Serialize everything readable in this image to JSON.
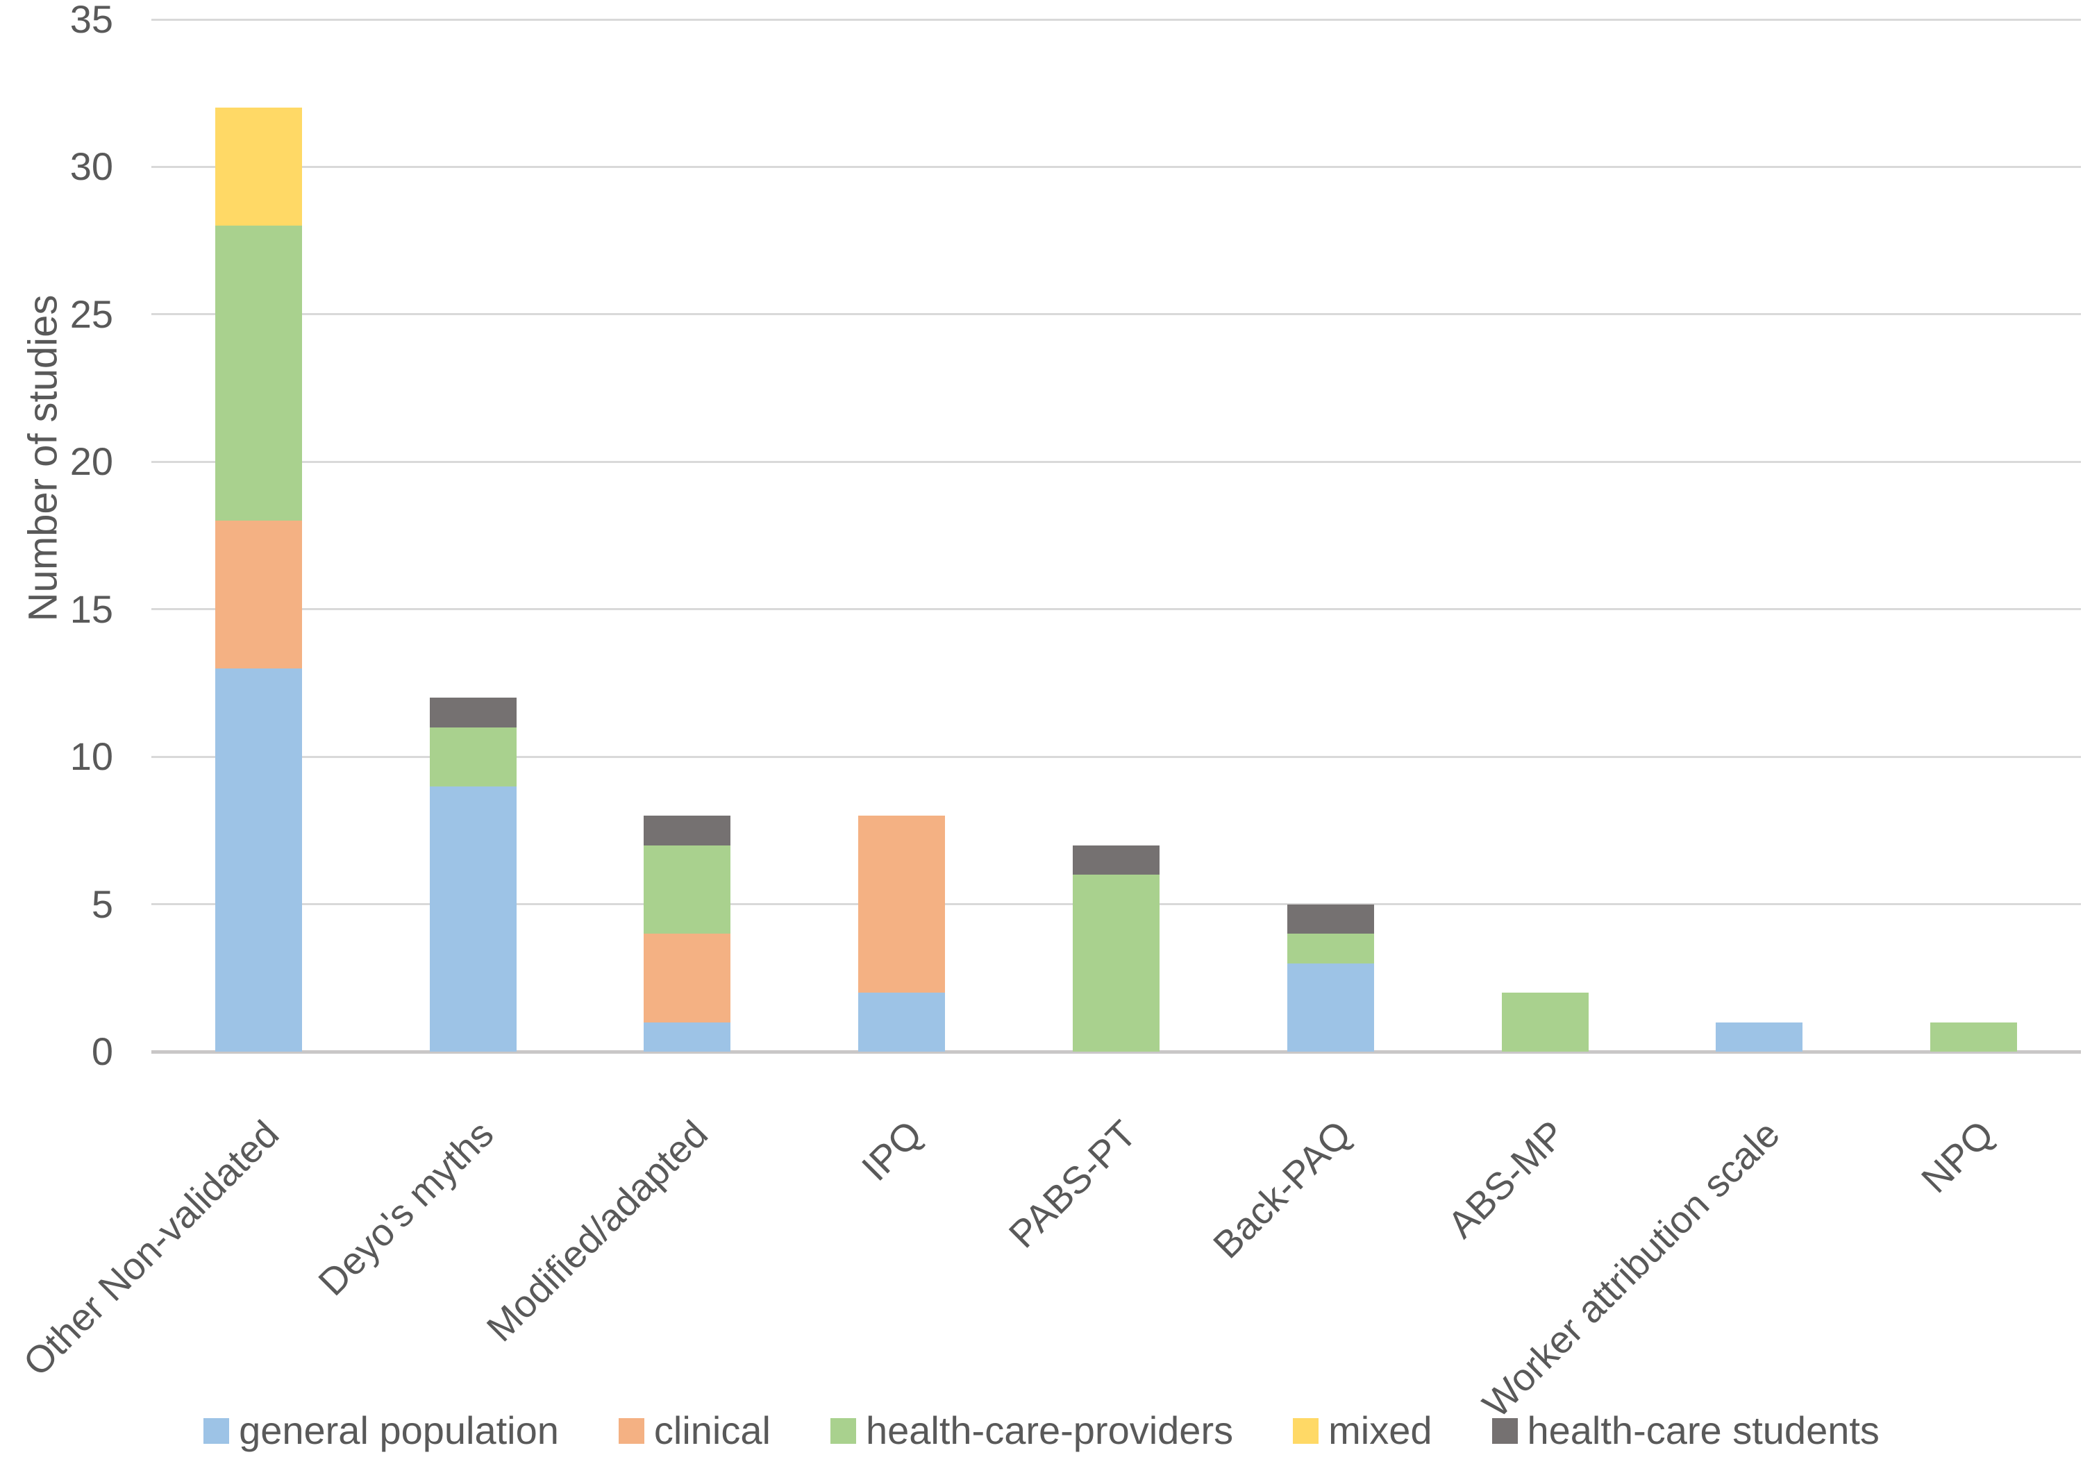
{
  "chart_data": {
    "type": "bar",
    "stacked": true,
    "ylabel": "Number of studies",
    "ylim": [
      0,
      35
    ],
    "ytick_step": 5,
    "grid": "horizontal",
    "legend_position": "bottom",
    "categories": [
      "Other Non-validated",
      "Deyo's myths",
      "Modified/adapted",
      "IPQ",
      "PABS-PT",
      "Back-PAQ",
      "ABS-MP",
      "Worker attribution scale",
      "NPQ"
    ],
    "series": [
      {
        "name": "general population",
        "color": "#9DC3E6",
        "values": [
          13,
          9,
          1,
          2,
          0,
          3,
          0,
          1,
          0
        ]
      },
      {
        "name": "clinical",
        "color": "#F4B183",
        "values": [
          5,
          0,
          3,
          6,
          0,
          0,
          0,
          0,
          0
        ]
      },
      {
        "name": "health-care-providers",
        "color": "#A9D18E",
        "values": [
          10,
          2,
          3,
          0,
          6,
          1,
          2,
          0,
          1
        ]
      },
      {
        "name": "mixed",
        "color": "#FFD966",
        "values": [
          4,
          0,
          0,
          0,
          0,
          0,
          0,
          0,
          0
        ]
      },
      {
        "name": "health-care students",
        "color": "#757171",
        "values": [
          0,
          1,
          1,
          0,
          1,
          1,
          0,
          0,
          0
        ]
      }
    ],
    "totals": [
      32,
      12,
      8,
      8,
      7,
      5,
      2,
      1,
      1
    ],
    "colors": {
      "text": "#595959",
      "gridline": "#D9D9D9",
      "axis_line": "#C9C7C7"
    }
  }
}
